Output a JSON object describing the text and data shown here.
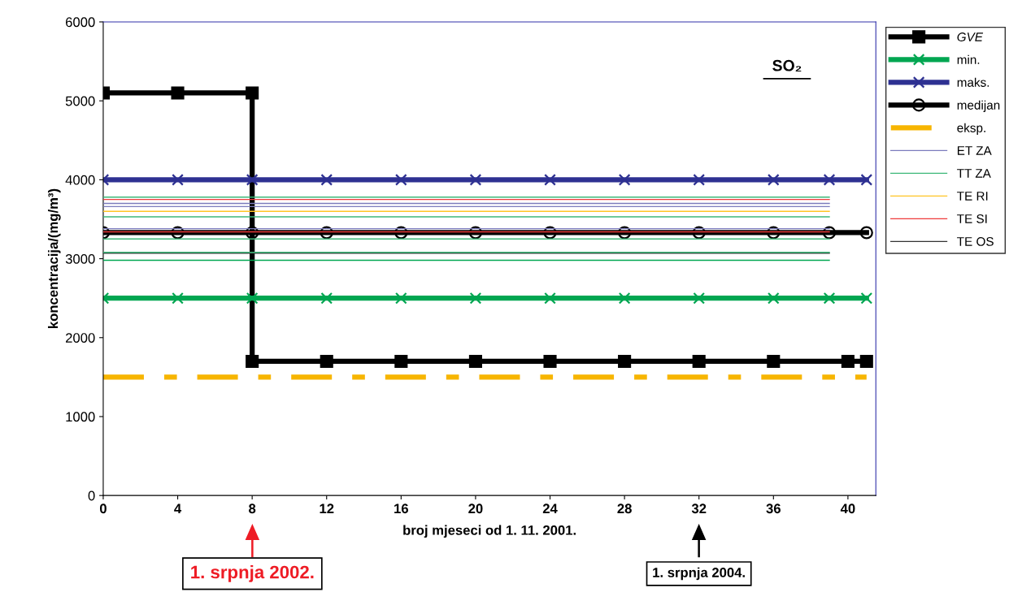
{
  "chart_data": {
    "type": "line",
    "title": "SO₂",
    "xlabel": "broj mjeseci od 1. 11. 2001.",
    "ylabel": "koncentracija/(mg/m³)",
    "xlim": [
      0,
      41.5
    ],
    "xticks": [
      0,
      4,
      8,
      12,
      16,
      20,
      24,
      28,
      32,
      36,
      40
    ],
    "ylim": [
      0,
      6000
    ],
    "yticks": [
      0,
      1000,
      2000,
      3000,
      4000,
      5000,
      6000
    ],
    "grid": false,
    "legend": "right",
    "annotations": [
      "1. srpnja 2002.",
      "1. srpnja 2004."
    ],
    "series": [
      {
        "name": "GVE",
        "color": "#000000",
        "marker": "square",
        "x": [
          0,
          4,
          8,
          8,
          12,
          16,
          20,
          24,
          28,
          32,
          36,
          40,
          41
        ],
        "values": [
          5100,
          5100,
          5100,
          1700,
          1700,
          1700,
          1700,
          1700,
          1700,
          1700,
          1700,
          1700,
          1700
        ]
      },
      {
        "name": "min.",
        "color": "#00a651",
        "marker": "cross",
        "x": [
          0,
          4,
          8,
          12,
          16,
          20,
          24,
          28,
          32,
          36,
          39,
          41
        ],
        "values": [
          2500,
          2500,
          2500,
          2500,
          2500,
          2500,
          2500,
          2500,
          2500,
          2500,
          2500,
          2500
        ]
      },
      {
        "name": "maks.",
        "color": "#2e3192",
        "marker": "cross",
        "x": [
          0,
          4,
          8,
          12,
          16,
          20,
          24,
          28,
          32,
          36,
          39,
          41
        ],
        "values": [
          4000,
          4000,
          4000,
          4000,
          4000,
          4000,
          4000,
          4000,
          4000,
          4000,
          4000,
          4000
        ]
      },
      {
        "name": "medijan",
        "color": "#000000",
        "marker": "circle",
        "x": [
          0,
          4,
          8,
          12,
          16,
          20,
          24,
          28,
          32,
          36,
          39,
          41
        ],
        "values": [
          3330,
          3330,
          3330,
          3330,
          3330,
          3330,
          3330,
          3330,
          3330,
          3330,
          3330,
          3330
        ]
      },
      {
        "name": "eksp.",
        "color": "#f7b500",
        "marker": "none",
        "line_style": "dashed",
        "x": [
          0,
          41
        ],
        "values": [
          1500,
          1500
        ]
      },
      {
        "name": "ET ZA",
        "color": "#7b7bbd",
        "marker": "none",
        "x": [
          0,
          39
        ],
        "values": [
          3700,
          3700
        ]
      },
      {
        "name": "TT ZA",
        "color": "#3cb878",
        "marker": "none",
        "x": [
          0,
          39
        ],
        "values": [
          3780,
          3780
        ]
      },
      {
        "name": "TE RI",
        "color": "#ffc425",
        "marker": "none",
        "x": [
          0,
          39
        ],
        "values": [
          3600,
          3600
        ]
      },
      {
        "name": "TE SI",
        "color": "#ee3b3b",
        "marker": "none",
        "x": [
          0,
          39
        ],
        "values": [
          3750,
          3750
        ]
      },
      {
        "name": "TE OS",
        "color": "#333333",
        "marker": "none",
        "x": [
          0,
          39
        ],
        "values": [
          3070,
          3070
        ]
      },
      {
        "color": "#7b7bbd",
        "marker": "none",
        "x": [
          0,
          39
        ],
        "values": [
          3660,
          3660
        ]
      },
      {
        "color": "#7b7bbd",
        "marker": "none",
        "x": [
          0,
          39
        ],
        "values": [
          3380,
          3380
        ]
      },
      {
        "color": "#3cb878",
        "marker": "none",
        "x": [
          0,
          39
        ],
        "values": [
          3530,
          3530
        ]
      },
      {
        "color": "#3cb878",
        "marker": "none",
        "x": [
          0,
          39
        ],
        "values": [
          3250,
          3250
        ]
      },
      {
        "color": "#3cb878",
        "marker": "none",
        "x": [
          0,
          39
        ],
        "values": [
          3080,
          3080
        ]
      },
      {
        "color": "#00a651",
        "marker": "none",
        "x": [
          0,
          39
        ],
        "values": [
          2980,
          2980
        ]
      },
      {
        "color": "#ee3b3b",
        "marker": "none",
        "x": [
          0,
          39
        ],
        "values": [
          3340,
          3340
        ]
      }
    ]
  }
}
